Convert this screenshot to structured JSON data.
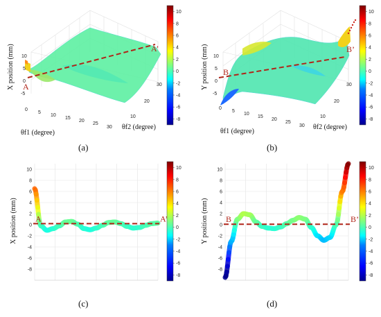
{
  "colors": {
    "colormap": [
      "#00008f",
      "#0000ff",
      "#007fff",
      "#00ffff",
      "#7fff7f",
      "#ffff00",
      "#ff7f00",
      "#ff0000",
      "#7f0000"
    ],
    "dashed_line": "#b02418",
    "grid": "#e3e3e3"
  },
  "colorbar": {
    "min": -9,
    "max": 11,
    "ticks": [
      "-8",
      "-6",
      "-4",
      "-2",
      "0",
      "2",
      "4",
      "6",
      "8",
      "10"
    ],
    "tick_values": [
      -8,
      -6,
      -4,
      -2,
      0,
      2,
      4,
      6,
      8,
      10
    ]
  },
  "panels": [
    {
      "caption": "(a)",
      "type": "surface3d",
      "zlabel": "X position (mm)",
      "xlabel": "θf1 (degree)",
      "ylabel": "θf2 (degree)",
      "zticks": [
        "10",
        "5",
        "0",
        "-5"
      ],
      "xticks": [
        "0",
        "5",
        "10",
        "15",
        "20",
        "25",
        "30"
      ],
      "yticks": [
        "10",
        "20",
        "30"
      ],
      "start_label": "A",
      "end_label": "A’"
    },
    {
      "caption": "(b)",
      "type": "surface3d",
      "zlabel": "Y position (mm)",
      "xlabel": "θf1 (degree)",
      "ylabel": "θf2 (degree)",
      "zticks": [
        "10",
        "5",
        "0",
        "-5"
      ],
      "xticks": [
        "0",
        "5",
        "10",
        "15",
        "20",
        "25",
        "30"
      ],
      "yticks": [
        "10",
        "20",
        "30"
      ],
      "start_label": "B",
      "end_label": "B’"
    },
    {
      "caption": "(c)",
      "type": "line2d",
      "ylabel": "X position (mm)",
      "yticks": [
        "10",
        "8",
        "6",
        "4",
        "2",
        "0",
        "-2",
        "-4",
        "-6",
        "-8"
      ],
      "start_label": "A",
      "end_label": "A’"
    },
    {
      "caption": "(d)",
      "type": "line2d",
      "ylabel": "Y position (mm)",
      "yticks": [
        "10",
        "8",
        "6",
        "4",
        "2",
        "0",
        "-2",
        "-4",
        "-6",
        "-8"
      ],
      "start_label": "B",
      "end_label": "B’"
    }
  ],
  "chart_data": [
    {
      "type": "surface",
      "title": "",
      "zlabel": "X position (mm)",
      "xlabel": "θf1 (degree)",
      "ylabel": "θf2 (degree)",
      "xlim": [
        0,
        30
      ],
      "ylim": [
        0,
        30
      ],
      "zlim": [
        -5,
        10
      ],
      "reference_line": {
        "from": "A",
        "to": "A’",
        "value": 0
      }
    },
    {
      "type": "surface",
      "title": "",
      "zlabel": "Y position (mm)",
      "xlabel": "θf1 (degree)",
      "ylabel": "θf2 (degree)",
      "xlim": [
        0,
        30
      ],
      "ylim": [
        0,
        30
      ],
      "zlim": [
        -5,
        10
      ],
      "reference_line": {
        "from": "B",
        "to": "B’",
        "value": 0
      }
    },
    {
      "type": "line",
      "ylabel": "X position (mm)",
      "ylim": [
        -10,
        11
      ],
      "x": [
        0,
        0.05,
        0.1,
        0.15,
        0.2,
        0.25,
        0.3,
        0.35,
        0.4,
        0.45,
        0.5,
        0.55,
        0.6,
        0.65,
        0.7,
        0.75,
        0.8,
        0.85,
        0.9,
        0.95,
        1.0
      ],
      "series": [
        {
          "values": [
            6.5,
            -0.2,
            -1.0,
            -0.7,
            -0.2,
            0.5,
            0.6,
            0.1,
            -0.7,
            -0.9,
            -0.6,
            -0.1,
            0.4,
            0.5,
            0.2,
            -0.3,
            -0.6,
            -0.5,
            -0.1,
            0.2,
            0.3
          ]
        }
      ],
      "reference_line": {
        "from": "A",
        "to": "A’",
        "value": 0.2
      }
    },
    {
      "type": "line",
      "ylabel": "Y position (mm)",
      "ylim": [
        -10,
        11
      ],
      "x": [
        0,
        0.05,
        0.1,
        0.15,
        0.2,
        0.25,
        0.3,
        0.35,
        0.4,
        0.45,
        0.5,
        0.55,
        0.6,
        0.65,
        0.7,
        0.75,
        0.8,
        0.85,
        0.9,
        0.95,
        1.0
      ],
      "series": [
        {
          "values": [
            -9.5,
            -3.0,
            1.0,
            2.0,
            1.8,
            0.5,
            -0.3,
            -0.6,
            -0.7,
            -0.4,
            0.2,
            0.8,
            1.3,
            1.0,
            -0.5,
            -2.0,
            -2.8,
            -2.3,
            0.0,
            6.0,
            11.0
          ]
        }
      ],
      "reference_line": {
        "from": "B",
        "to": "B’",
        "value": 0.1
      }
    }
  ]
}
